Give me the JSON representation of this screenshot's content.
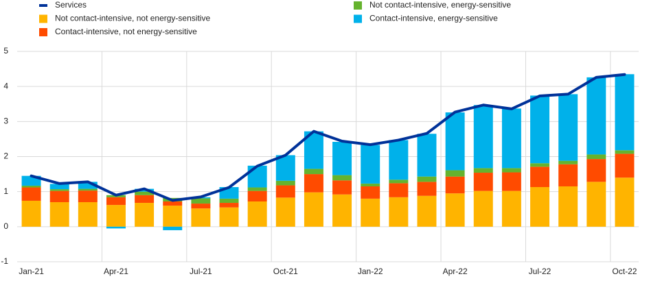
{
  "chart_data": {
    "type": "stacked-bar-line",
    "categories": [
      "Jan-21",
      null,
      null,
      "Apr-21",
      null,
      null,
      "Jul-21",
      null,
      null,
      "Oct-21",
      null,
      null,
      "Jan-22",
      null,
      null,
      "Apr-22",
      null,
      null,
      "Jul-22",
      null,
      null,
      "Oct-22"
    ],
    "series": [
      {
        "name": "Services",
        "color": "#003299",
        "kind": "line",
        "values": [
          1.45,
          1.23,
          1.28,
          0.9,
          1.08,
          0.75,
          0.85,
          1.12,
          1.73,
          2.04,
          2.72,
          2.44,
          2.34,
          2.47,
          2.66,
          3.27,
          3.47,
          3.36,
          3.73,
          3.78,
          4.26,
          4.34
        ]
      },
      {
        "name": "Not contact-intensive, not energy-sensitive",
        "color": "#ffb400",
        "kind": "bar",
        "values": [
          0.74,
          0.7,
          0.7,
          0.62,
          0.68,
          0.6,
          0.52,
          0.55,
          0.72,
          0.83,
          0.98,
          0.92,
          0.8,
          0.84,
          0.88,
          0.95,
          1.02,
          1.02,
          1.13,
          1.15,
          1.28,
          1.4
        ]
      },
      {
        "name": "Contact-intensive, not energy-sensitive",
        "color": "#ff4b00",
        "kind": "bar",
        "values": [
          0.38,
          0.32,
          0.33,
          0.22,
          0.22,
          0.12,
          0.14,
          0.13,
          0.3,
          0.35,
          0.52,
          0.4,
          0.35,
          0.4,
          0.4,
          0.48,
          0.52,
          0.53,
          0.58,
          0.63,
          0.65,
          0.68
        ]
      },
      {
        "name": "Not contact-intensive, energy-sensitive",
        "color": "#65b32e",
        "kind": "bar",
        "values": [
          0.05,
          0.05,
          0.05,
          0.06,
          0.1,
          0.1,
          0.15,
          0.12,
          0.1,
          0.13,
          0.15,
          0.15,
          0.08,
          0.1,
          0.15,
          0.18,
          0.13,
          0.12,
          0.1,
          0.1,
          0.13,
          0.1
        ]
      },
      {
        "name": "Contact-intensive, energy-sensitive",
        "color": "#00b1ea",
        "kind": "bar",
        "values": [
          0.28,
          0.15,
          0.2,
          -0.05,
          0.08,
          -0.1,
          0.03,
          0.33,
          0.62,
          0.73,
          1.07,
          0.95,
          1.1,
          1.13,
          1.22,
          1.65,
          1.8,
          1.7,
          1.93,
          1.9,
          2.2,
          2.17
        ]
      }
    ],
    "ylim": [
      -1,
      5
    ],
    "yticks": [
      -1,
      0,
      1,
      2,
      3,
      4,
      5
    ],
    "grid": true
  }
}
